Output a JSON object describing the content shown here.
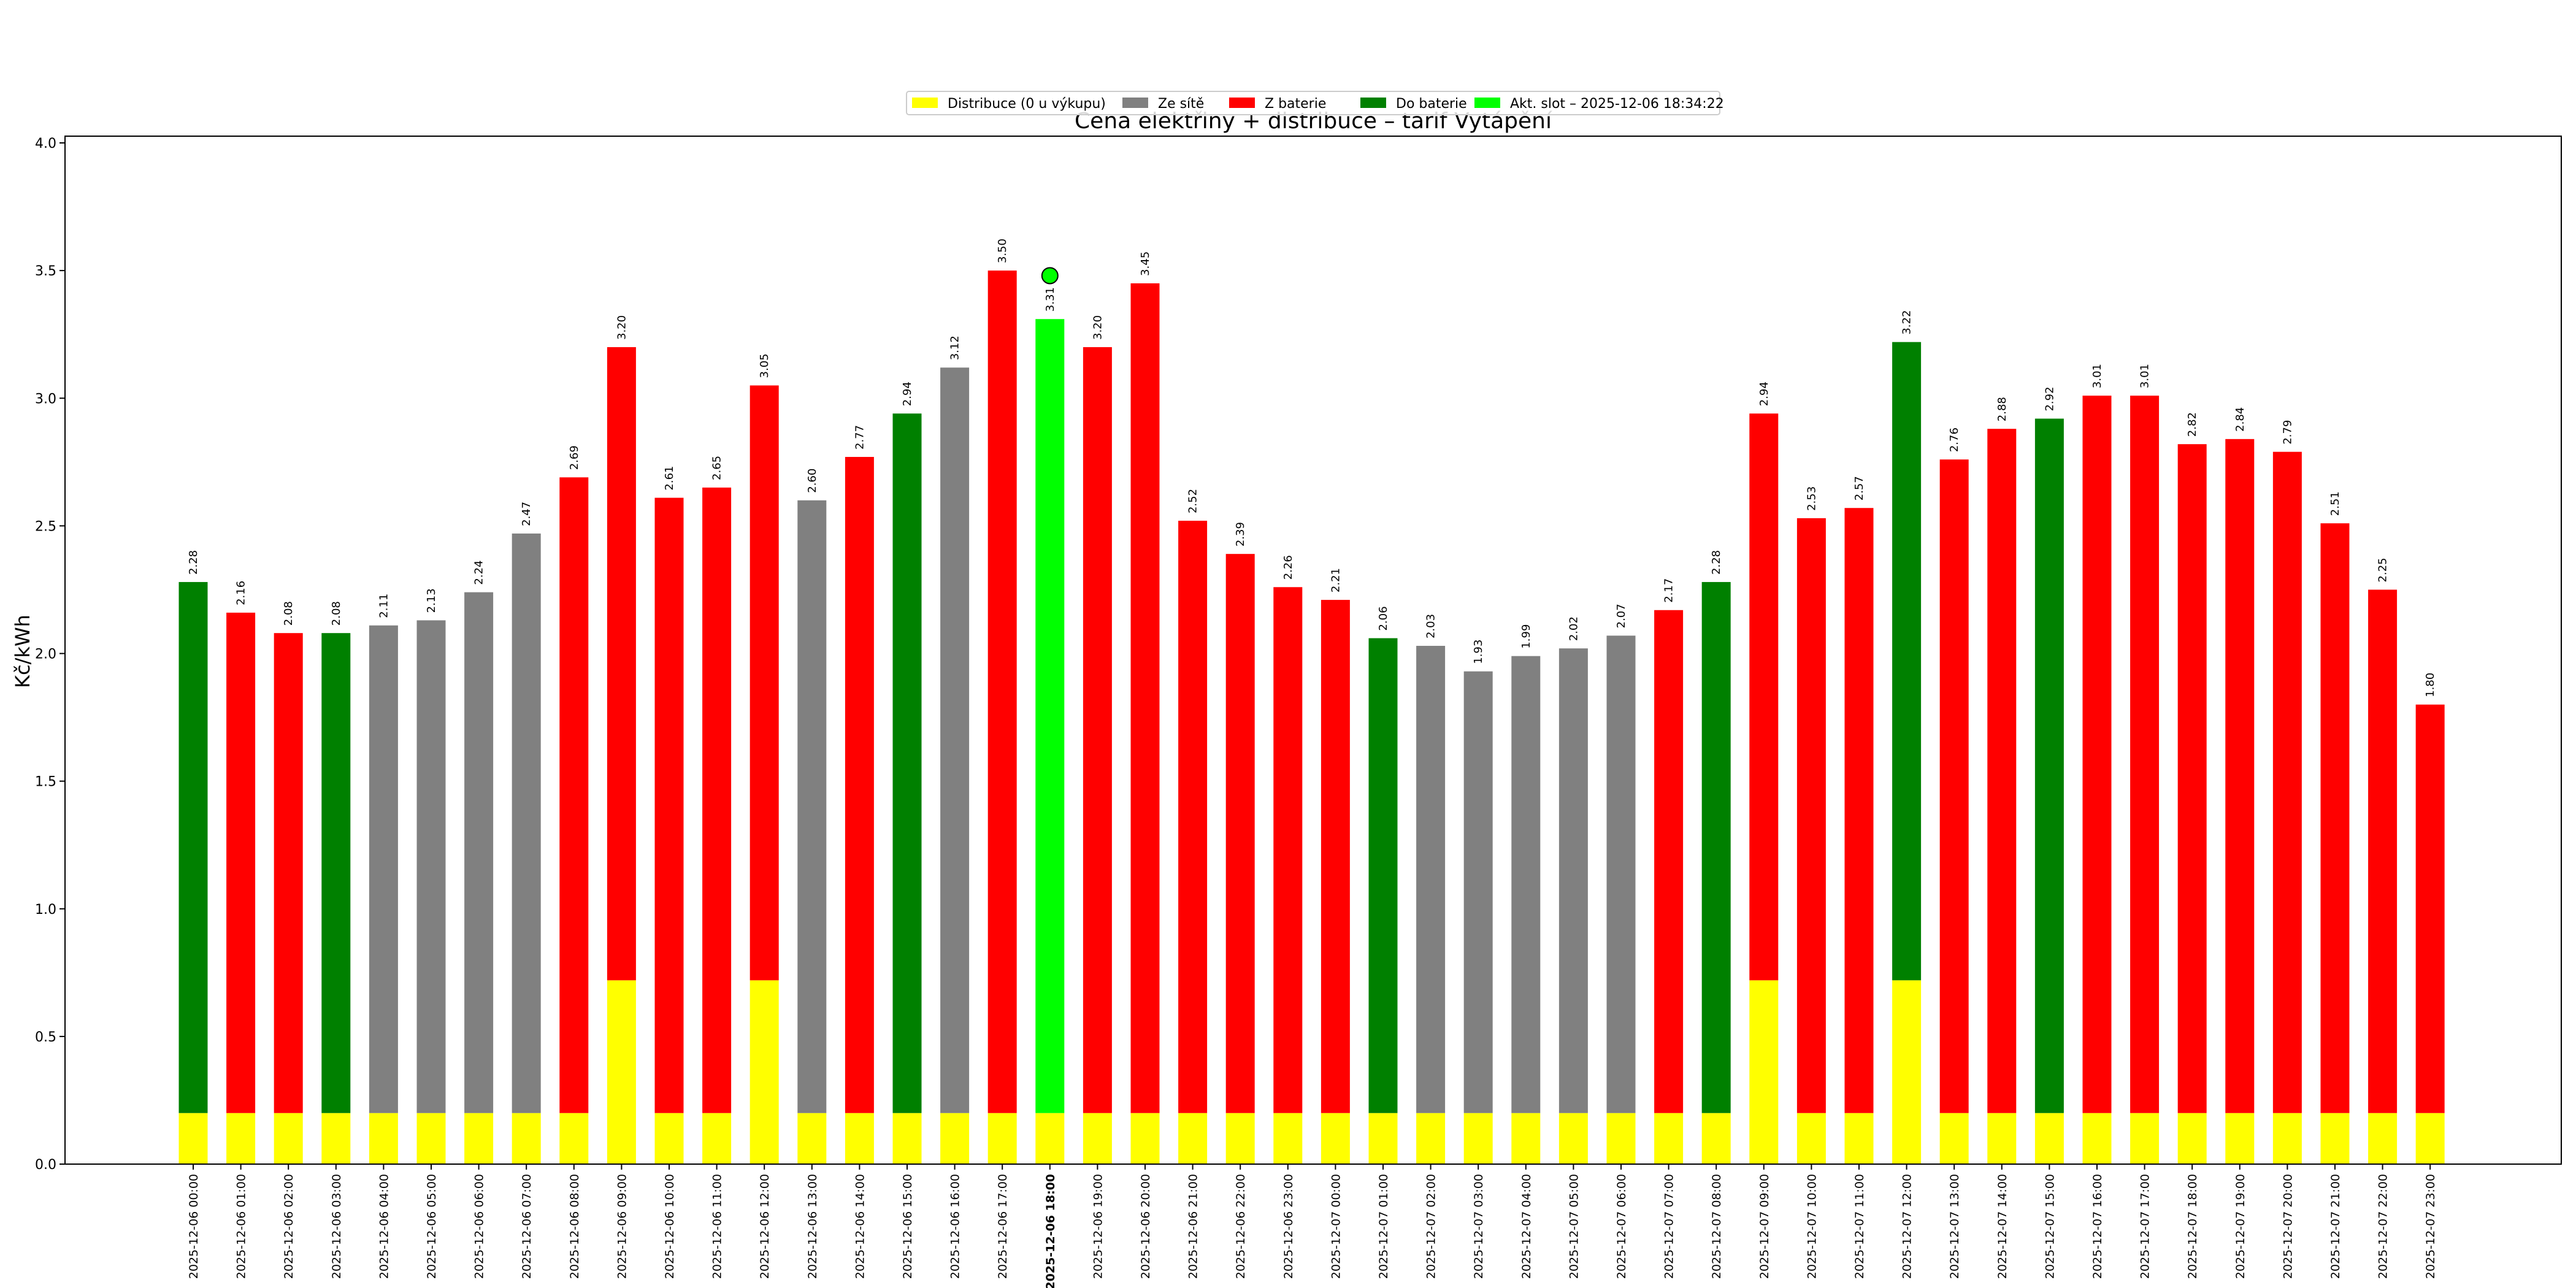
{
  "chart_data": {
    "type": "bar",
    "title": "Cena elektřiny + distribuce – tarif Vytápění",
    "xlabel": "",
    "ylabel": "Kč/kWh",
    "ylim": [
      0,
      4.0
    ],
    "yticks": [
      "0.0",
      "0.5",
      "1.0",
      "1.5",
      "2.0",
      "2.5",
      "3.0",
      "3.5",
      "4.0"
    ],
    "grid": false,
    "legend_position": "top-center",
    "colors": {
      "distribuce": "#ffff00",
      "ze_site": "#808080",
      "z_baterie": "#ff0000",
      "do_baterie": "#008000",
      "akt_slot": "#00ff00"
    },
    "legend": [
      {
        "label": "Distribuce (0 u výkupu)",
        "color": "#ffff00"
      },
      {
        "label": "Ze sítě",
        "color": "#808080"
      },
      {
        "label": "Z baterie",
        "color": "#ff0000"
      },
      {
        "label": "Do baterie",
        "color": "#008000"
      },
      {
        "label": "Akt. slot – 2025-12-06 18:34:22",
        "color": "#00ff00"
      }
    ],
    "current_index": 18,
    "current_marker_value": 3.48,
    "categories": [
      "2025-12-06 00:00",
      "2025-12-06 01:00",
      "2025-12-06 02:00",
      "2025-12-06 03:00",
      "2025-12-06 04:00",
      "2025-12-06 05:00",
      "2025-12-06 06:00",
      "2025-12-06 07:00",
      "2025-12-06 08:00",
      "2025-12-06 09:00",
      "2025-12-06 10:00",
      "2025-12-06 11:00",
      "2025-12-06 12:00",
      "2025-12-06 13:00",
      "2025-12-06 14:00",
      "2025-12-06 15:00",
      "2025-12-06 16:00",
      "2025-12-06 17:00",
      "2025-12-06 18:00",
      "2025-12-06 19:00",
      "2025-12-06 20:00",
      "2025-12-06 21:00",
      "2025-12-06 22:00",
      "2025-12-06 23:00",
      "2025-12-07 00:00",
      "2025-12-07 01:00",
      "2025-12-07 02:00",
      "2025-12-07 03:00",
      "2025-12-07 04:00",
      "2025-12-07 05:00",
      "2025-12-07 06:00",
      "2025-12-07 07:00",
      "2025-12-07 08:00",
      "2025-12-07 09:00",
      "2025-12-07 10:00",
      "2025-12-07 11:00",
      "2025-12-07 12:00",
      "2025-12-07 13:00",
      "2025-12-07 14:00",
      "2025-12-07 15:00",
      "2025-12-07 16:00",
      "2025-12-07 17:00",
      "2025-12-07 18:00",
      "2025-12-07 19:00",
      "2025-12-07 20:00",
      "2025-12-07 21:00",
      "2025-12-07 22:00",
      "2025-12-07 23:00"
    ],
    "totals": [
      2.28,
      2.16,
      2.08,
      2.08,
      2.11,
      2.13,
      2.24,
      2.47,
      2.69,
      3.2,
      2.61,
      2.65,
      3.05,
      2.6,
      2.77,
      2.94,
      3.12,
      3.5,
      3.31,
      3.2,
      3.45,
      2.52,
      2.39,
      2.26,
      2.21,
      2.06,
      2.03,
      1.93,
      1.99,
      2.02,
      2.07,
      2.17,
      2.28,
      2.94,
      2.53,
      2.57,
      3.22,
      2.76,
      2.88,
      2.92,
      3.01,
      3.01,
      2.82,
      2.84,
      2.79,
      2.51,
      2.25,
      1.8
    ],
    "total_labels": [
      "2.28",
      "2.16",
      "2.08",
      "2.08",
      "2.11",
      "2.13",
      "2.24",
      "2.47",
      "2.69",
      "3.20",
      "2.61",
      "2.65",
      "3.05",
      "2.60",
      "2.77",
      "2.94",
      "3.12",
      "3.50",
      "3.31",
      "3.20",
      "3.45",
      "2.52",
      "2.39",
      "2.26",
      "2.21",
      "2.06",
      "2.03",
      "1.93",
      "1.99",
      "2.02",
      "2.07",
      "2.17",
      "2.28",
      "2.94",
      "2.53",
      "2.57",
      "3.22",
      "2.76",
      "2.88",
      "2.92",
      "3.01",
      "3.01",
      "2.82",
      "2.84",
      "2.79",
      "2.51",
      "2.25",
      "1.80"
    ],
    "distribution": [
      0.2,
      0.2,
      0.2,
      0.2,
      0.2,
      0.2,
      0.2,
      0.2,
      0.2,
      0.72,
      0.2,
      0.2,
      0.72,
      0.2,
      0.2,
      0.2,
      0.2,
      0.2,
      0.2,
      0.2,
      0.2,
      0.2,
      0.2,
      0.2,
      0.2,
      0.2,
      0.2,
      0.2,
      0.2,
      0.2,
      0.2,
      0.2,
      0.2,
      0.72,
      0.2,
      0.2,
      0.72,
      0.2,
      0.2,
      0.2,
      0.2,
      0.2,
      0.2,
      0.2,
      0.2,
      0.2,
      0.2,
      0.2
    ],
    "modes": [
      "do_baterie",
      "z_baterie",
      "z_baterie",
      "do_baterie",
      "ze_site",
      "ze_site",
      "ze_site",
      "ze_site",
      "z_baterie",
      "z_baterie",
      "z_baterie",
      "z_baterie",
      "z_baterie",
      "ze_site",
      "z_baterie",
      "do_baterie",
      "ze_site",
      "z_baterie",
      "akt_slot",
      "z_baterie",
      "z_baterie",
      "z_baterie",
      "z_baterie",
      "z_baterie",
      "z_baterie",
      "do_baterie",
      "ze_site",
      "ze_site",
      "ze_site",
      "ze_site",
      "ze_site",
      "z_baterie",
      "do_baterie",
      "z_baterie",
      "z_baterie",
      "z_baterie",
      "do_baterie",
      "z_baterie",
      "z_baterie",
      "do_baterie",
      "z_baterie",
      "z_baterie",
      "z_baterie",
      "z_baterie",
      "z_baterie",
      "z_baterie",
      "z_baterie",
      "z_baterie"
    ]
  }
}
